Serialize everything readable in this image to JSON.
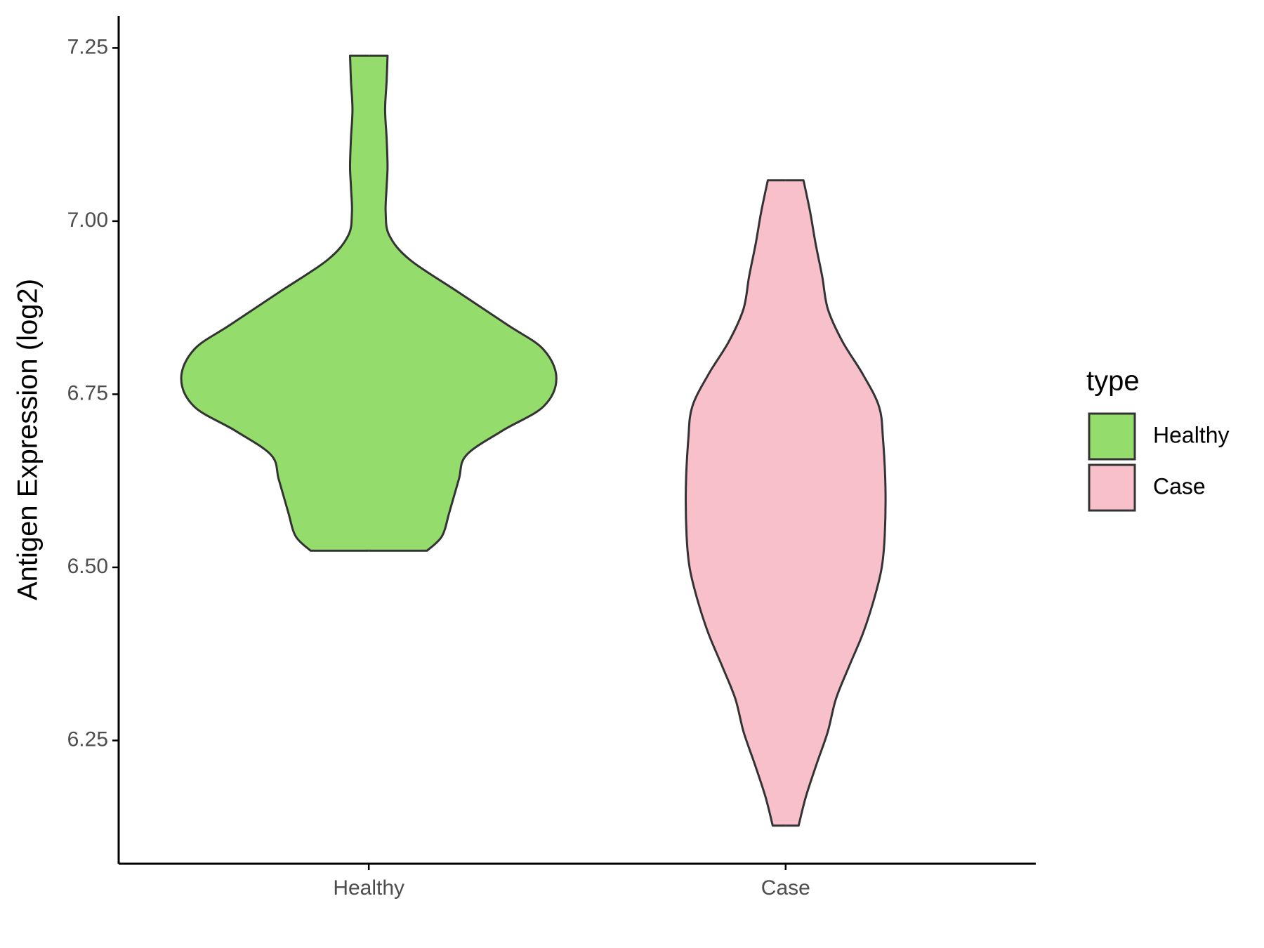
{
  "chart_data": {
    "type": "violin",
    "y_label": "Antigen Expression (log2)",
    "categories": [
      "Healthy",
      "Case"
    ],
    "series": [
      {
        "name": "Healthy",
        "color": "#94dc6b",
        "y": [
          6.524,
          6.545,
          6.58,
          6.627,
          6.662,
          6.697,
          6.732,
          6.773,
          6.815,
          6.85,
          6.897,
          6.944,
          6.979,
          7.012,
          7.049,
          7.079,
          7.12,
          7.161,
          7.202,
          7.239
        ],
        "density": [
          0.31,
          0.39,
          0.43,
          0.48,
          0.52,
          0.71,
          0.93,
          1,
          0.93,
          0.74,
          0.48,
          0.22,
          0.11,
          0.09,
          0.095,
          0.1,
          0.095,
          0.087,
          0.095,
          0.1
        ]
      },
      {
        "name": "Case",
        "color": "#f8c0cb",
        "y": [
          6.127,
          6.169,
          6.216,
          6.263,
          6.31,
          6.357,
          6.404,
          6.451,
          6.498,
          6.545,
          6.615,
          6.685,
          6.732,
          6.779,
          6.826,
          6.873,
          6.92,
          6.967,
          7.014,
          7.059
        ],
        "density": [
          0.069,
          0.108,
          0.165,
          0.225,
          0.268,
          0.338,
          0.411,
          0.468,
          0.511,
          0.528,
          0.532,
          0.519,
          0.498,
          0.411,
          0.303,
          0.225,
          0.195,
          0.16,
          0.13,
          0.095
        ]
      }
    ],
    "ylim": [
      6.072,
      7.296
    ],
    "yticks": [
      {
        "value": 6.25,
        "label": "6.25"
      },
      {
        "value": 6.5,
        "label": "6.50"
      },
      6.75,
      {
        "value": 7,
        "label": "7.00"
      },
      7.25
    ],
    "legend_title": "type",
    "legend": "right"
  }
}
